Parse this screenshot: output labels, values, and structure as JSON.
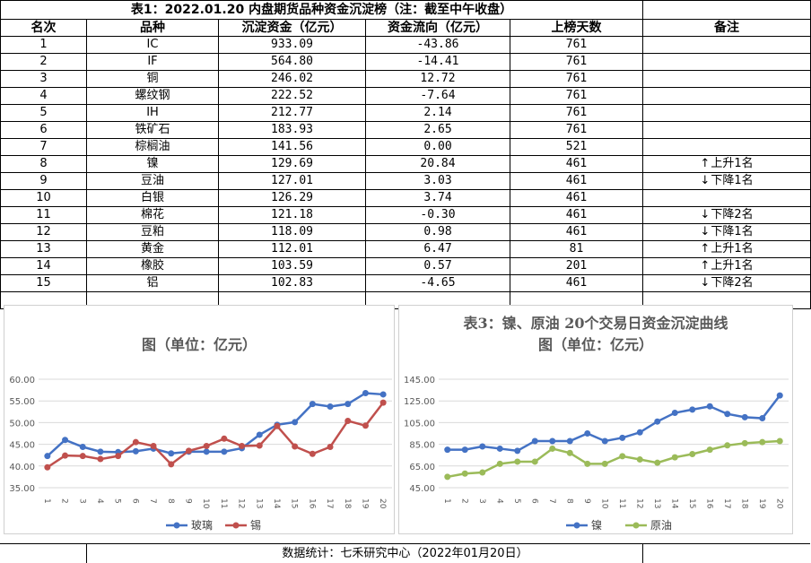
{
  "table_title": "表1：2022.01.20 内盘期货品种资金沉淀榜（注：截至中午收盘）",
  "headers": [
    "名次",
    "品种",
    "沉淀资金（亿元）",
    "资金流向（亿元）",
    "上榜天数",
    "备注"
  ],
  "rows": [
    {
      "rank": "1",
      "name": "IC",
      "sed": "933.09",
      "flow": "-43.86",
      "days": "761",
      "note_arrow": "",
      "note": ""
    },
    {
      "rank": "2",
      "name": "IF",
      "sed": "564.80",
      "flow": "-14.41",
      "days": "761",
      "note_arrow": "",
      "note": ""
    },
    {
      "rank": "3",
      "name": "铜",
      "sed": "246.02",
      "flow": "12.72",
      "days": "761",
      "note_arrow": "",
      "note": ""
    },
    {
      "rank": "4",
      "name": "螺纹钢",
      "sed": "222.52",
      "flow": "-7.64",
      "days": "761",
      "note_arrow": "",
      "note": ""
    },
    {
      "rank": "5",
      "name": "IH",
      "sed": "212.77",
      "flow": "2.14",
      "days": "761",
      "note_arrow": "",
      "note": ""
    },
    {
      "rank": "6",
      "name": "铁矿石",
      "sed": "183.93",
      "flow": "2.65",
      "days": "761",
      "note_arrow": "",
      "note": ""
    },
    {
      "rank": "7",
      "name": "棕榈油",
      "sed": "141.56",
      "flow": "0.00",
      "days": "521",
      "note_arrow": "",
      "note": ""
    },
    {
      "rank": "8",
      "name": "镍",
      "sed": "129.69",
      "flow": "20.84",
      "days": "461",
      "note_arrow": "↑",
      "note": "上升1名"
    },
    {
      "rank": "9",
      "name": "豆油",
      "sed": "127.01",
      "flow": "3.03",
      "days": "461",
      "note_arrow": "↓",
      "note": "下降1名"
    },
    {
      "rank": "10",
      "name": "白银",
      "sed": "126.29",
      "flow": "3.74",
      "days": "461",
      "note_arrow": "",
      "note": ""
    },
    {
      "rank": "11",
      "name": "棉花",
      "sed": "121.18",
      "flow": "-0.30",
      "days": "461",
      "note_arrow": "↓",
      "note": "下降2名"
    },
    {
      "rank": "12",
      "name": "豆粕",
      "sed": "118.09",
      "flow": "0.98",
      "days": "461",
      "note_arrow": "↓",
      "note": "下降1名"
    },
    {
      "rank": "13",
      "name": "黄金",
      "sed": "112.01",
      "flow": "6.47",
      "days": "81",
      "note_arrow": "↑",
      "note": "上升1名"
    },
    {
      "rank": "14",
      "name": "橡胶",
      "sed": "103.59",
      "flow": "0.57",
      "days": "201",
      "note_arrow": "↑",
      "note": "上升1名"
    },
    {
      "rank": "15",
      "name": "铝",
      "sed": "102.83",
      "flow": "-4.65",
      "days": "461",
      "note_arrow": "↓",
      "note": "下降2名"
    }
  ],
  "footer": "数据统计：七禾研究中心（2022年01月20日）",
  "chart_data": [
    {
      "type": "line",
      "title_line1": "",
      "title_line2": "图（单位：亿元）",
      "x": [
        1,
        2,
        3,
        4,
        5,
        6,
        7,
        8,
        9,
        10,
        11,
        12,
        13,
        14,
        15,
        16,
        17,
        18,
        19,
        20
      ],
      "ylim": [
        35,
        60
      ],
      "yticks": [
        "35.00",
        "40.00",
        "45.00",
        "50.00",
        "55.00",
        "60.00"
      ],
      "grid": true,
      "legend": "bottom",
      "series": [
        {
          "name": "玻璃",
          "color": "#4472c4",
          "values": [
            42.3,
            46.0,
            44.4,
            43.3,
            43.2,
            43.4,
            44.0,
            42.9,
            43.3,
            43.3,
            43.3,
            44.1,
            47.2,
            49.5,
            50.1,
            54.3,
            53.7,
            54.3,
            56.8,
            56.5
          ]
        },
        {
          "name": "锡",
          "color": "#c0504d",
          "values": [
            39.7,
            42.4,
            42.3,
            41.6,
            42.3,
            45.5,
            44.6,
            40.4,
            43.5,
            44.6,
            46.3,
            44.6,
            44.7,
            49.2,
            44.5,
            42.8,
            44.4,
            50.4,
            49.3,
            54.6
          ]
        }
      ]
    },
    {
      "type": "line",
      "title_line1": "表3：镍、原油 20个交易日资金沉淀曲线",
      "title_line2": "图（单位：亿元）",
      "x": [
        1,
        2,
        3,
        4,
        5,
        6,
        7,
        8,
        9,
        10,
        11,
        12,
        13,
        14,
        15,
        16,
        17,
        18,
        19,
        20
      ],
      "ylim": [
        45,
        145
      ],
      "yticks": [
        "45.00",
        "65.00",
        "85.00",
        "105.00",
        "125.00",
        "145.00"
      ],
      "grid": true,
      "legend": "bottom",
      "series": [
        {
          "name": "镍",
          "color": "#4472c4",
          "values": [
            80,
            80,
            83,
            81,
            79,
            88,
            88,
            88,
            95,
            88,
            91,
            96,
            106,
            114,
            117,
            120,
            113,
            110,
            109,
            130
          ]
        },
        {
          "name": "原油",
          "color": "#9bbb59",
          "values": [
            55,
            58,
            59,
            67,
            69,
            69,
            81,
            77,
            67,
            67,
            74,
            71,
            68,
            73,
            76,
            80,
            84,
            86,
            87,
            88
          ]
        }
      ]
    }
  ]
}
